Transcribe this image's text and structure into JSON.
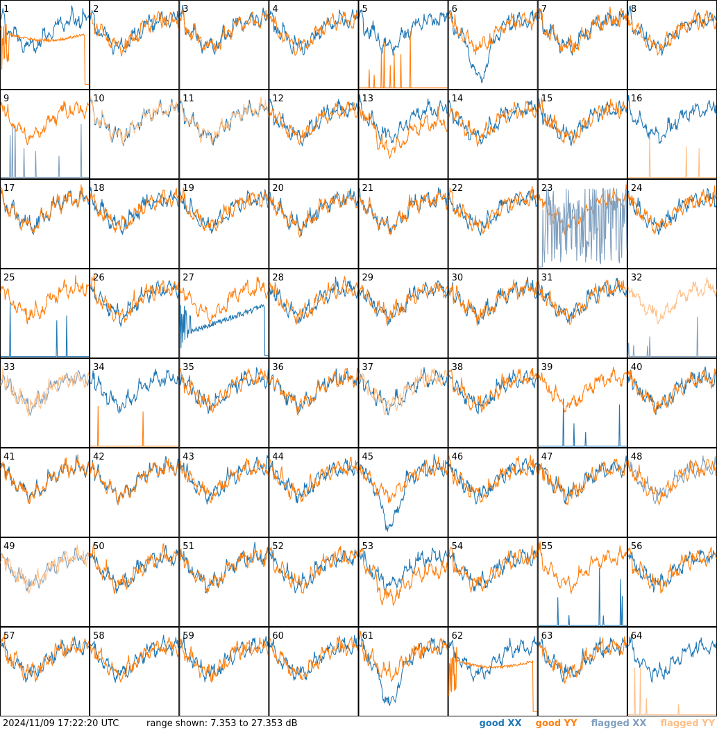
{
  "timestamp": "2024/11/09 17:22:20 UTC",
  "range_text": "range shown: 7.353 to 27.353 dB",
  "legend": [
    {
      "label": "good XX",
      "color": "#1f77b4"
    },
    {
      "label": "good YY",
      "color": "#ff7f0e"
    },
    {
      "label": "flagged XX",
      "color": "#7f9fbf"
    },
    {
      "label": "flagged YY",
      "color": "#ffbf86"
    }
  ],
  "chart_data": {
    "type": "line",
    "grid": "8x8 small multiples",
    "ylim_db": [
      7.353,
      27.353
    ],
    "panels": [
      {
        "id": "1",
        "xx": "good",
        "yy": "good",
        "style": "yy-hump-dropoff"
      },
      {
        "id": "2",
        "xx": "good",
        "yy": "good",
        "style": "normal"
      },
      {
        "id": "3",
        "xx": "good",
        "yy": "good",
        "style": "normal"
      },
      {
        "id": "4",
        "xx": "good",
        "yy": "good",
        "style": "normal"
      },
      {
        "id": "5",
        "xx": "good",
        "yy": "good",
        "style": "yy-spikes"
      },
      {
        "id": "6",
        "xx": "good",
        "yy": "good",
        "style": "dip"
      },
      {
        "id": "7",
        "xx": "good",
        "yy": "good",
        "style": "normal"
      },
      {
        "id": "8",
        "xx": "good",
        "yy": "good",
        "style": "normal"
      },
      {
        "id": "9",
        "xx": "flagged",
        "yy": "good",
        "style": "xx-spikes"
      },
      {
        "id": "10",
        "xx": "good",
        "yy": "flagged",
        "style": "normal"
      },
      {
        "id": "11",
        "xx": "good",
        "yy": "flagged",
        "style": "normal"
      },
      {
        "id": "12",
        "xx": "good",
        "yy": "good",
        "style": "normal"
      },
      {
        "id": "13",
        "xx": "good",
        "yy": "good",
        "style": "yy-low"
      },
      {
        "id": "14",
        "xx": "good",
        "yy": "good",
        "style": "normal"
      },
      {
        "id": "15",
        "xx": "good",
        "yy": "good",
        "style": "normal"
      },
      {
        "id": "16",
        "xx": "good",
        "yy": "flagged",
        "style": "yy-spikes"
      },
      {
        "id": "17",
        "xx": "good",
        "yy": "good",
        "style": "normal"
      },
      {
        "id": "18",
        "xx": "good",
        "yy": "good",
        "style": "normal"
      },
      {
        "id": "19",
        "xx": "good",
        "yy": "good",
        "style": "normal"
      },
      {
        "id": "20",
        "xx": "good",
        "yy": "good",
        "style": "normal"
      },
      {
        "id": "21",
        "xx": "good",
        "yy": "good",
        "style": "normal"
      },
      {
        "id": "22",
        "xx": "good",
        "yy": "good",
        "style": "normal"
      },
      {
        "id": "23",
        "xx": "flagged",
        "yy": "good",
        "style": "xx-noisy"
      },
      {
        "id": "24",
        "xx": "good",
        "yy": "good",
        "style": "normal"
      },
      {
        "id": "25",
        "xx": "good",
        "yy": "good",
        "style": "xx-spikes"
      },
      {
        "id": "26",
        "xx": "good",
        "yy": "good",
        "style": "normal"
      },
      {
        "id": "27",
        "xx": "good",
        "yy": "good",
        "style": "xx-hump-dropoff"
      },
      {
        "id": "28",
        "xx": "good",
        "yy": "good",
        "style": "normal"
      },
      {
        "id": "29",
        "xx": "good",
        "yy": "good",
        "style": "normal"
      },
      {
        "id": "30",
        "xx": "good",
        "yy": "good",
        "style": "normal"
      },
      {
        "id": "31",
        "xx": "good",
        "yy": "good",
        "style": "normal"
      },
      {
        "id": "32",
        "xx": "flagged",
        "yy": "flagged",
        "style": "xx-spikes"
      },
      {
        "id": "33",
        "xx": "flagged",
        "yy": "flagged",
        "style": "normal"
      },
      {
        "id": "34",
        "xx": "good",
        "yy": "good",
        "style": "yy-spikes"
      },
      {
        "id": "35",
        "xx": "good",
        "yy": "good",
        "style": "normal"
      },
      {
        "id": "36",
        "xx": "good",
        "yy": "good",
        "style": "normal"
      },
      {
        "id": "37",
        "xx": "good",
        "yy": "flagged",
        "style": "normal"
      },
      {
        "id": "38",
        "xx": "good",
        "yy": "good",
        "style": "normal"
      },
      {
        "id": "39",
        "xx": "good",
        "yy": "good",
        "style": "xx-spikes"
      },
      {
        "id": "40",
        "xx": "good",
        "yy": "good",
        "style": "normal"
      },
      {
        "id": "41",
        "xx": "good",
        "yy": "good",
        "style": "normal"
      },
      {
        "id": "42",
        "xx": "good",
        "yy": "good",
        "style": "normal"
      },
      {
        "id": "43",
        "xx": "good",
        "yy": "good",
        "style": "normal"
      },
      {
        "id": "44",
        "xx": "good",
        "yy": "good",
        "style": "normal"
      },
      {
        "id": "45",
        "xx": "good",
        "yy": "good",
        "style": "dip"
      },
      {
        "id": "46",
        "xx": "good",
        "yy": "good",
        "style": "normal"
      },
      {
        "id": "47",
        "xx": "good",
        "yy": "good",
        "style": "normal"
      },
      {
        "id": "48",
        "xx": "flagged",
        "yy": "good",
        "style": "normal"
      },
      {
        "id": "49",
        "xx": "flagged",
        "yy": "flagged",
        "style": "normal"
      },
      {
        "id": "50",
        "xx": "good",
        "yy": "good",
        "style": "normal"
      },
      {
        "id": "51",
        "xx": "good",
        "yy": "good",
        "style": "normal"
      },
      {
        "id": "52",
        "xx": "good",
        "yy": "good",
        "style": "normal"
      },
      {
        "id": "53",
        "xx": "good",
        "yy": "good",
        "style": "yy-low"
      },
      {
        "id": "54",
        "xx": "good",
        "yy": "good",
        "style": "normal"
      },
      {
        "id": "55",
        "xx": "good",
        "yy": "good",
        "style": "xx-spikes"
      },
      {
        "id": "56",
        "xx": "good",
        "yy": "good",
        "style": "normal"
      },
      {
        "id": "57",
        "xx": "good",
        "yy": "good",
        "style": "normal"
      },
      {
        "id": "58",
        "xx": "good",
        "yy": "good",
        "style": "normal"
      },
      {
        "id": "59",
        "xx": "good",
        "yy": "good",
        "style": "normal"
      },
      {
        "id": "60",
        "xx": "good",
        "yy": "good",
        "style": "normal"
      },
      {
        "id": "61",
        "xx": "good",
        "yy": "good",
        "style": "dip"
      },
      {
        "id": "62",
        "xx": "good",
        "yy": "good",
        "style": "yy-hump-dropoff"
      },
      {
        "id": "63",
        "xx": "good",
        "yy": "good",
        "style": "normal"
      },
      {
        "id": "64",
        "xx": "good",
        "yy": "flagged",
        "style": "yy-spikes"
      }
    ]
  }
}
